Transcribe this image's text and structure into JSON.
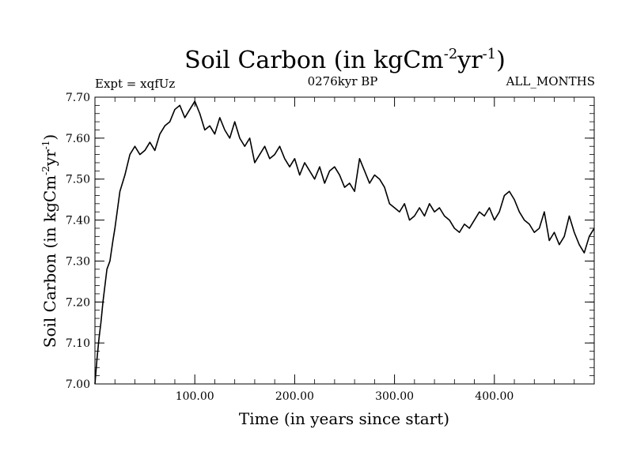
{
  "header": {
    "title_text": "Soil Carbon (in kgCm",
    "title_sup1": "-2",
    "title_mid": "yr",
    "title_sup2": "-1",
    "title_close": ")",
    "expt_label": "Expt = xqfUz",
    "period_label": "0276kyr BP",
    "months_label": "ALL_MONTHS"
  },
  "axes": {
    "ylabel_text": "Soil Carbon (in kgCm",
    "ylabel_sup1": "-2",
    "ylabel_mid": "yr",
    "ylabel_sup2": "-1",
    "ylabel_close": ")",
    "xlabel": "Time (in years since start)"
  },
  "chart_data": {
    "type": "line",
    "title": "Soil Carbon (in kgCm-2yr-1)",
    "subtitle": "0276kyr BP",
    "annotations": [
      "Expt = xqfUz",
      "ALL_MONTHS"
    ],
    "xlabel": "Time (in years since start)",
    "ylabel": "Soil Carbon (in kgCm-2yr-1)",
    "xlim": [
      0,
      500
    ],
    "ylim": [
      7.0,
      7.7
    ],
    "x_ticks": [
      100,
      200,
      300,
      400
    ],
    "x_tick_labels": [
      "100.00",
      "200.00",
      "300.00",
      "400.00"
    ],
    "y_ticks": [
      7.0,
      7.1,
      7.2,
      7.3,
      7.4,
      7.5,
      7.6,
      7.7
    ],
    "y_tick_labels": [
      "7.00",
      "7.10",
      "7.20",
      "7.30",
      "7.40",
      "7.50",
      "7.60",
      "7.70"
    ],
    "grid": false,
    "series": [
      {
        "name": "Soil Carbon",
        "color": "#000000",
        "x": [
          0,
          2,
          4,
          6,
          8,
          10,
          12,
          15,
          18,
          20,
          25,
          30,
          35,
          40,
          45,
          50,
          55,
          60,
          65,
          70,
          75,
          80,
          85,
          90,
          95,
          100,
          105,
          110,
          115,
          120,
          125,
          130,
          135,
          140,
          145,
          150,
          155,
          160,
          165,
          170,
          175,
          180,
          185,
          190,
          195,
          200,
          205,
          210,
          215,
          220,
          225,
          230,
          235,
          240,
          245,
          250,
          255,
          260,
          265,
          270,
          275,
          280,
          285,
          290,
          295,
          300,
          305,
          310,
          315,
          320,
          325,
          330,
          335,
          340,
          345,
          350,
          355,
          360,
          365,
          370,
          375,
          380,
          385,
          390,
          395,
          400,
          405,
          410,
          415,
          420,
          425,
          430,
          435,
          440,
          445,
          450,
          455,
          460,
          465,
          470,
          475,
          480,
          485,
          490,
          495,
          500
        ],
        "values": [
          7.0,
          7.06,
          7.11,
          7.15,
          7.2,
          7.24,
          7.28,
          7.3,
          7.35,
          7.38,
          7.47,
          7.51,
          7.56,
          7.58,
          7.56,
          7.57,
          7.59,
          7.57,
          7.61,
          7.63,
          7.64,
          7.67,
          7.68,
          7.65,
          7.67,
          7.69,
          7.66,
          7.62,
          7.63,
          7.61,
          7.65,
          7.62,
          7.6,
          7.64,
          7.6,
          7.58,
          7.6,
          7.54,
          7.56,
          7.58,
          7.55,
          7.56,
          7.58,
          7.55,
          7.53,
          7.55,
          7.51,
          7.54,
          7.52,
          7.5,
          7.53,
          7.49,
          7.52,
          7.53,
          7.51,
          7.48,
          7.49,
          7.47,
          7.55,
          7.52,
          7.49,
          7.51,
          7.5,
          7.48,
          7.44,
          7.43,
          7.42,
          7.44,
          7.4,
          7.41,
          7.43,
          7.41,
          7.44,
          7.42,
          7.43,
          7.41,
          7.4,
          7.38,
          7.37,
          7.39,
          7.38,
          7.4,
          7.42,
          7.41,
          7.43,
          7.4,
          7.42,
          7.46,
          7.47,
          7.45,
          7.42,
          7.4,
          7.39,
          7.37,
          7.38,
          7.42,
          7.35,
          7.37,
          7.34,
          7.36,
          7.41,
          7.37,
          7.34,
          7.32,
          7.36,
          7.38
        ]
      }
    ]
  }
}
